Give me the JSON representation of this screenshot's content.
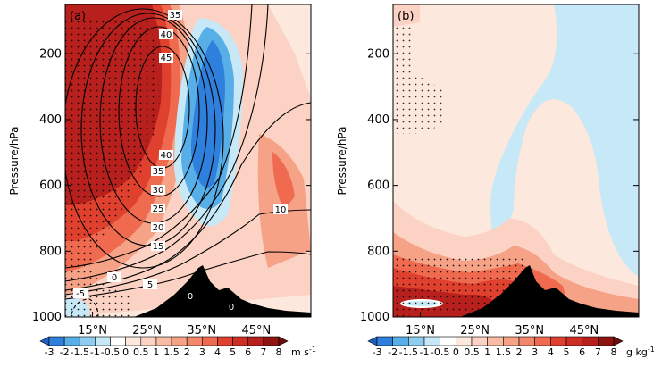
{
  "chart_data": [
    {
      "type": "heatmap",
      "panel_label": "(a)",
      "ylabel": "Pressure/hPa",
      "x_ticks": [
        "15°N",
        "25°N",
        "35°N",
        "45°N"
      ],
      "y_ticks": [
        "200",
        "400",
        "600",
        "800",
        "1000"
      ],
      "ylim": [
        1000,
        50
      ],
      "colorbar": {
        "levels": [
          "-3",
          "-2",
          "-1.5",
          "-1",
          "-0.5",
          "0",
          "0.5",
          "1",
          "1.5",
          "2",
          "3",
          "4",
          "5",
          "6",
          "7",
          "8"
        ],
        "unit": "m s",
        "unit_exp": "-1"
      },
      "contour_labels": [
        "35",
        "40",
        "45",
        "40",
        "35",
        "30",
        "25",
        "20",
        "15",
        "10",
        "5",
        "-5",
        "0",
        "0",
        "0"
      ]
    },
    {
      "type": "heatmap",
      "panel_label": "(b)",
      "ylabel": "Pressure/hPa",
      "x_ticks": [
        "15°N",
        "25°N",
        "35°N",
        "45°N"
      ],
      "y_ticks": [
        "200",
        "400",
        "600",
        "800",
        "1000"
      ],
      "ylim": [
        1000,
        50
      ],
      "colorbar": {
        "levels": [
          "-3",
          "-2",
          "-1.5",
          "-1",
          "-0.5",
          "0",
          "0.5",
          "1",
          "1.5",
          "2",
          "3",
          "4",
          "5",
          "6",
          "7",
          "8"
        ],
        "unit": "g kg",
        "unit_exp": "-1"
      }
    }
  ],
  "colors": {
    "dark_red": "#b8201d",
    "red": "#e0412e",
    "orange_red": "#ef6a4e",
    "salmon": "#f5a287",
    "light_pink": "#fbd2c3",
    "pale_pink": "#fde8dd",
    "light_blue": "#c7e9f7",
    "mid_blue": "#58aee7",
    "blue": "#2f7fdc",
    "terrain": "#000000"
  }
}
